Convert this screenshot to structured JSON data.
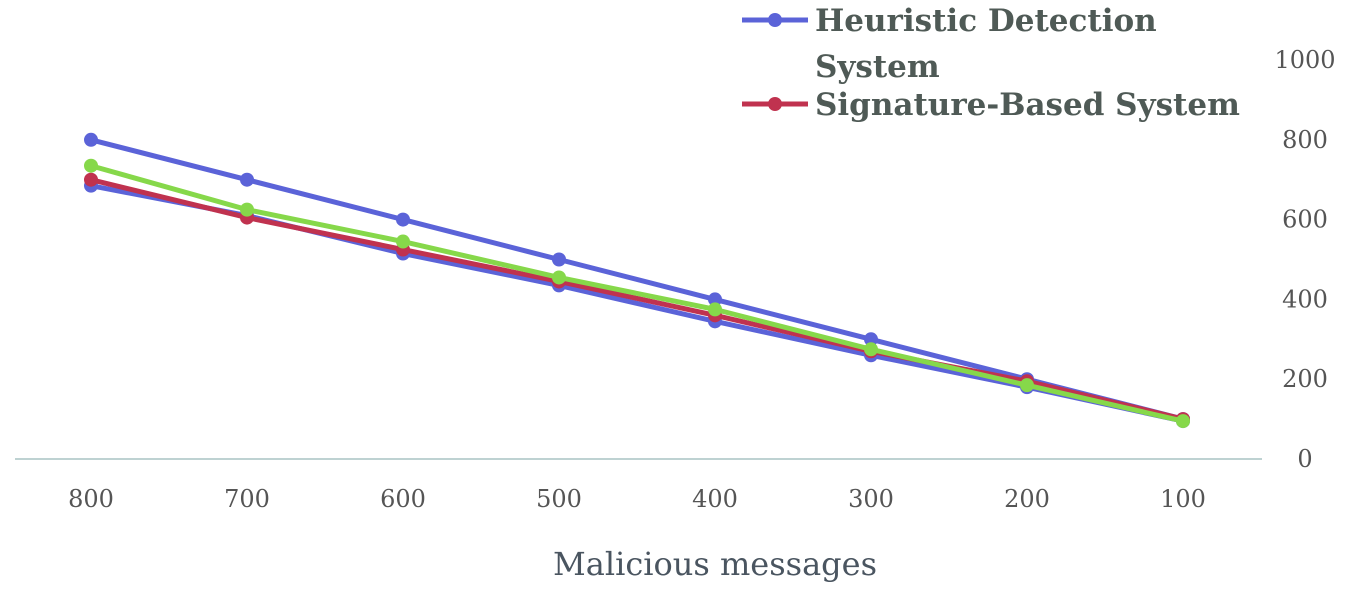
{
  "chart_data": {
    "type": "line",
    "title": "",
    "xlabel": "Malicious messages",
    "ylabel": "",
    "x": [
      800,
      700,
      600,
      500,
      400,
      300,
      200,
      100
    ],
    "x_reversed": true,
    "y_ticks": [
      0,
      200,
      400,
      600,
      800,
      1000
    ],
    "ylim": [
      0,
      1000
    ],
    "y_axis_side": "right",
    "grid": false,
    "legend_placement": "top-right",
    "series": [
      {
        "name": "",
        "color": "#5b63d8",
        "values": [
          800,
          700,
          600,
          500,
          400,
          300,
          200,
          100
        ]
      },
      {
        "name": "Heuristic Detection System",
        "color": "#5b63d8",
        "values": [
          685,
          610,
          515,
          435,
          345,
          260,
          180,
          95
        ]
      },
      {
        "name": "Signature-Based System",
        "color": "#c0324f",
        "values": [
          700,
          605,
          525,
          445,
          360,
          270,
          195,
          100
        ]
      },
      {
        "name": "",
        "color": "#86d84a",
        "values": [
          735,
          625,
          545,
          455,
          375,
          275,
          185,
          95
        ]
      }
    ],
    "legend": [
      {
        "label_lines": [
          "Heuristic Detection",
          "System"
        ],
        "color": "#5b63d8"
      },
      {
        "label_lines": [
          "Signature-Based System"
        ],
        "color": "#c0324f"
      }
    ],
    "axis_color": "#a9c4c4"
  }
}
